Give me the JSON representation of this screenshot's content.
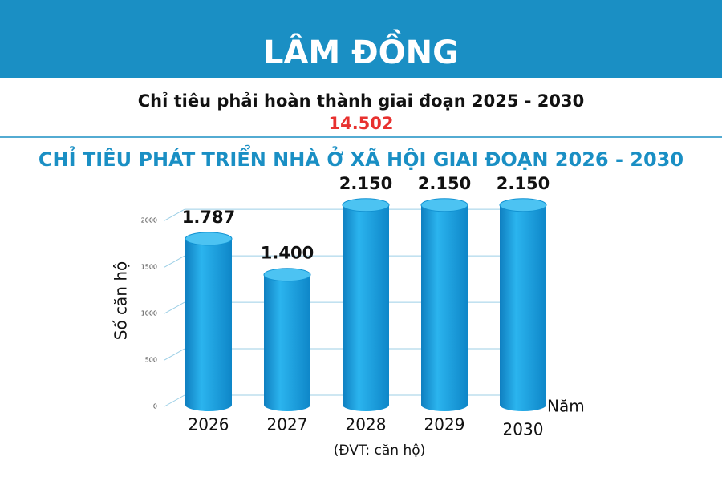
{
  "header": {
    "title": "LÂM ĐỒNG",
    "subtitle": "Chỉ tiêu phải hoàn thành giai đoạn 2025 - 2030",
    "total": "14.502"
  },
  "chart_data": {
    "type": "bar",
    "title": "CHỈ TIÊU PHÁT TRIỂN NHÀ Ở XÃ HỘI GIAI ĐOẠN 2026 - 2030",
    "categories": [
      "2026",
      "2027",
      "2028",
      "2029",
      "2030"
    ],
    "values": [
      1787,
      1400,
      2150,
      2150,
      2150
    ],
    "value_labels": [
      "1.787",
      "1.400",
      "2.150",
      "2.150",
      "2.150"
    ],
    "color": "#1aa3e0",
    "ylabel": "Số căn hộ",
    "xlabel": "Năm",
    "note": "(ĐVT: căn hộ)",
    "ylim": [
      0,
      2200
    ],
    "yticks": [
      0,
      500,
      1000,
      1500,
      2000
    ],
    "grid": true
  }
}
